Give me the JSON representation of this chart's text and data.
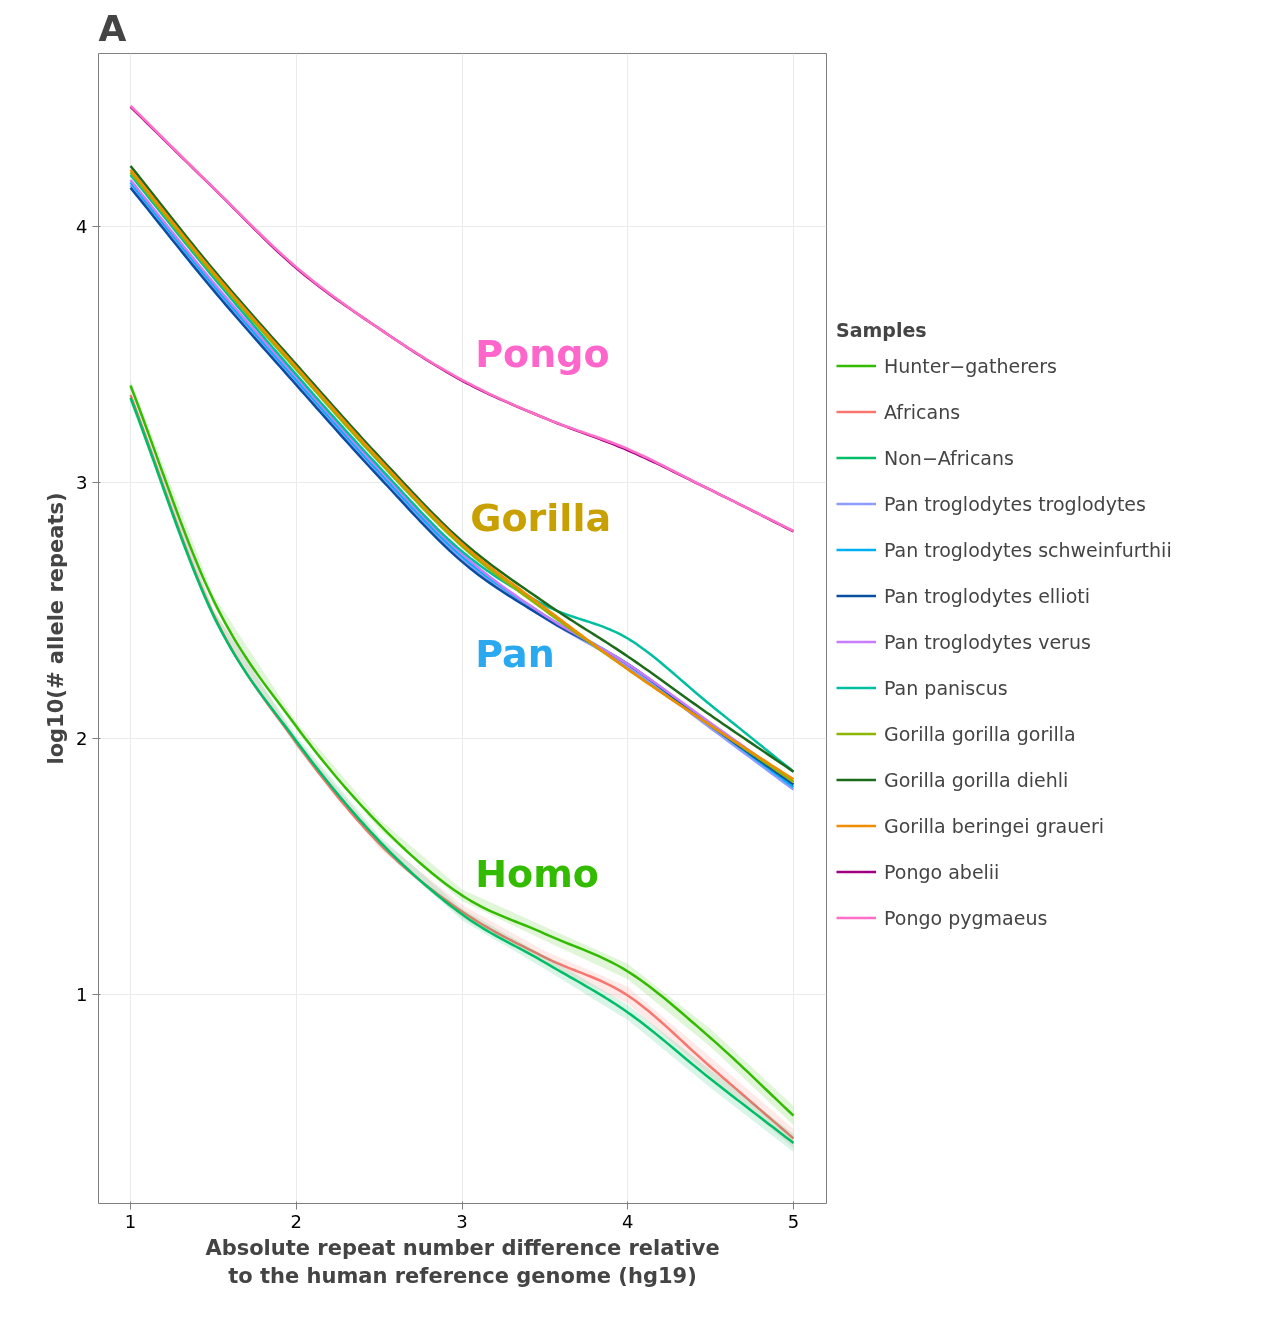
{
  "chart_data": {
    "type": "line",
    "title": "A",
    "xlabel": "Absolute repeat number difference relative\nto the human reference genome (hg19)",
    "ylabel": "log10(# allele repeats)",
    "legend_title": "Samples",
    "legend": "right",
    "grid": true,
    "x": [
      1,
      1.5,
      2,
      2.5,
      3,
      3.5,
      4,
      4.5,
      5
    ],
    "xlim": [
      0.807,
      5.199
    ],
    "ylim": [
      0.184,
      4.674
    ],
    "xticks": [
      1,
      2,
      3,
      4,
      5
    ],
    "yticks": [
      1,
      2,
      3,
      4
    ],
    "series": [
      {
        "name": "Hunter−gatherers",
        "color": "#33bb00",
        "values": [
          3.378,
          2.54,
          2.047,
          1.665,
          1.387,
          1.237,
          1.09,
          0.83,
          0.527
        ],
        "lower": [
          3.36,
          2.52,
          2.03,
          1.645,
          1.365,
          1.21,
          1.06,
          0.795,
          0.49
        ],
        "upper": [
          3.4,
          2.56,
          2.065,
          1.685,
          1.41,
          1.265,
          1.12,
          0.865,
          0.565
        ]
      },
      {
        "name": "Africans",
        "color": "#f8766d",
        "values": [
          3.34,
          2.485,
          1.983,
          1.59,
          1.324,
          1.145,
          0.996,
          0.717,
          0.438
        ],
        "lower": [
          3.32,
          2.465,
          1.965,
          1.57,
          1.3,
          1.12,
          0.965,
          0.68,
          0.4
        ],
        "upper": [
          3.36,
          2.505,
          2.0,
          1.61,
          1.35,
          1.17,
          1.03,
          0.755,
          0.475
        ]
      },
      {
        "name": "Non−Africans",
        "color": "#00be67",
        "values": [
          3.33,
          2.48,
          1.99,
          1.6,
          1.313,
          1.125,
          0.93,
          0.67,
          0.42
        ],
        "lower": [
          3.31,
          2.46,
          1.97,
          1.58,
          1.29,
          1.1,
          0.9,
          0.635,
          0.385
        ],
        "upper": [
          3.35,
          2.5,
          2.01,
          1.62,
          1.335,
          1.15,
          0.96,
          0.705,
          0.455
        ]
      },
      {
        "name": "Pan troglodytes troglodytes",
        "color": "#8f9cff",
        "values": [
          4.16,
          3.76,
          3.39,
          3.03,
          2.7,
          2.47,
          2.28,
          2.04,
          1.8
        ]
      },
      {
        "name": "Pan troglodytes schweinfurthii",
        "color": "#00b0f6",
        "values": [
          4.17,
          3.77,
          3.4,
          3.04,
          2.71,
          2.48,
          2.29,
          2.05,
          1.81
        ]
      },
      {
        "name": "Pan troglodytes ellioti",
        "color": "#0a4f9e",
        "values": [
          4.15,
          3.75,
          3.38,
          3.02,
          2.69,
          2.47,
          2.29,
          2.05,
          1.82
        ]
      },
      {
        "name": "Pan troglodytes verus",
        "color": "#c77cff",
        "values": [
          4.18,
          3.78,
          3.41,
          3.05,
          2.72,
          2.48,
          2.29,
          2.06,
          1.83
        ]
      },
      {
        "name": "Pan paniscus",
        "color": "#00bfa0",
        "values": [
          4.2,
          3.8,
          3.42,
          3.06,
          2.73,
          2.52,
          2.39,
          2.13,
          1.87
        ]
      },
      {
        "name": "Gorilla gorilla gorilla",
        "color": "#8db600",
        "values": [
          4.21,
          3.81,
          3.44,
          3.08,
          2.75,
          2.5,
          2.27,
          2.05,
          1.83
        ]
      },
      {
        "name": "Gorilla gorilla diehli",
        "color": "#1b6b1b",
        "values": [
          4.235,
          3.83,
          3.46,
          3.1,
          2.77,
          2.53,
          2.32,
          2.09,
          1.87
        ]
      },
      {
        "name": "Gorilla beringei graueri",
        "color": "#f08c00",
        "values": [
          4.22,
          3.82,
          3.45,
          3.09,
          2.76,
          2.51,
          2.27,
          2.05,
          1.84
        ]
      },
      {
        "name": "Pongo abelii",
        "color": "#a0007f",
        "values": [
          4.466,
          4.149,
          3.836,
          3.6,
          3.397,
          3.25,
          3.125,
          2.97,
          2.808
        ]
      },
      {
        "name": "Pongo pygmaeus",
        "color": "#ff6ec7",
        "values": [
          4.47,
          4.15,
          3.84,
          3.6,
          3.4,
          3.25,
          3.13,
          2.97,
          2.81
        ]
      }
    ],
    "annotations": [
      "Pongo",
      "Gorilla",
      "Pan",
      "Homo"
    ]
  }
}
